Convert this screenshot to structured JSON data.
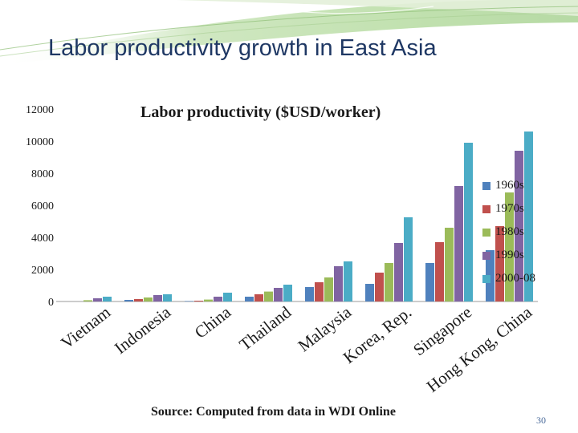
{
  "slide": {
    "title": "Labor productivity growth in East Asia",
    "source": "Source: Computed from data in WDI Online",
    "page_number": "30"
  },
  "colors": {
    "series": [
      "#4f81bd",
      "#c0504d",
      "#9bbb59",
      "#8064a2",
      "#4bacc6"
    ],
    "header_band": "#9ccd8a",
    "title": "#1f3864"
  },
  "chart_data": {
    "type": "bar",
    "title": "Labor productivity ($USD/worker)",
    "xlabel": "",
    "ylabel": "",
    "ylim": [
      0,
      12000
    ],
    "yticks": [
      0,
      2000,
      4000,
      6000,
      8000,
      10000,
      12000
    ],
    "grid": false,
    "legend_position": "right",
    "categories": [
      "Vietnam",
      "Indonesia",
      "China",
      "Thailand",
      "Malaysia",
      "Korea, Rep.",
      "Singapore",
      "Hong Kong, China"
    ],
    "series": [
      {
        "name": "1960s",
        "values": [
          0,
          100,
          30,
          300,
          900,
          1100,
          2400,
          3200
        ]
      },
      {
        "name": "1970s",
        "values": [
          0,
          150,
          50,
          450,
          1200,
          1800,
          3700,
          4700
        ]
      },
      {
        "name": "1980s",
        "values": [
          80,
          250,
          120,
          620,
          1500,
          2400,
          4600,
          6800
        ]
      },
      {
        "name": "1990s",
        "values": [
          200,
          400,
          300,
          850,
          2200,
          3650,
          7200,
          9400
        ]
      },
      {
        "name": "2000-08",
        "values": [
          300,
          450,
          550,
          1050,
          2500,
          5250,
          9900,
          10600
        ]
      }
    ]
  }
}
